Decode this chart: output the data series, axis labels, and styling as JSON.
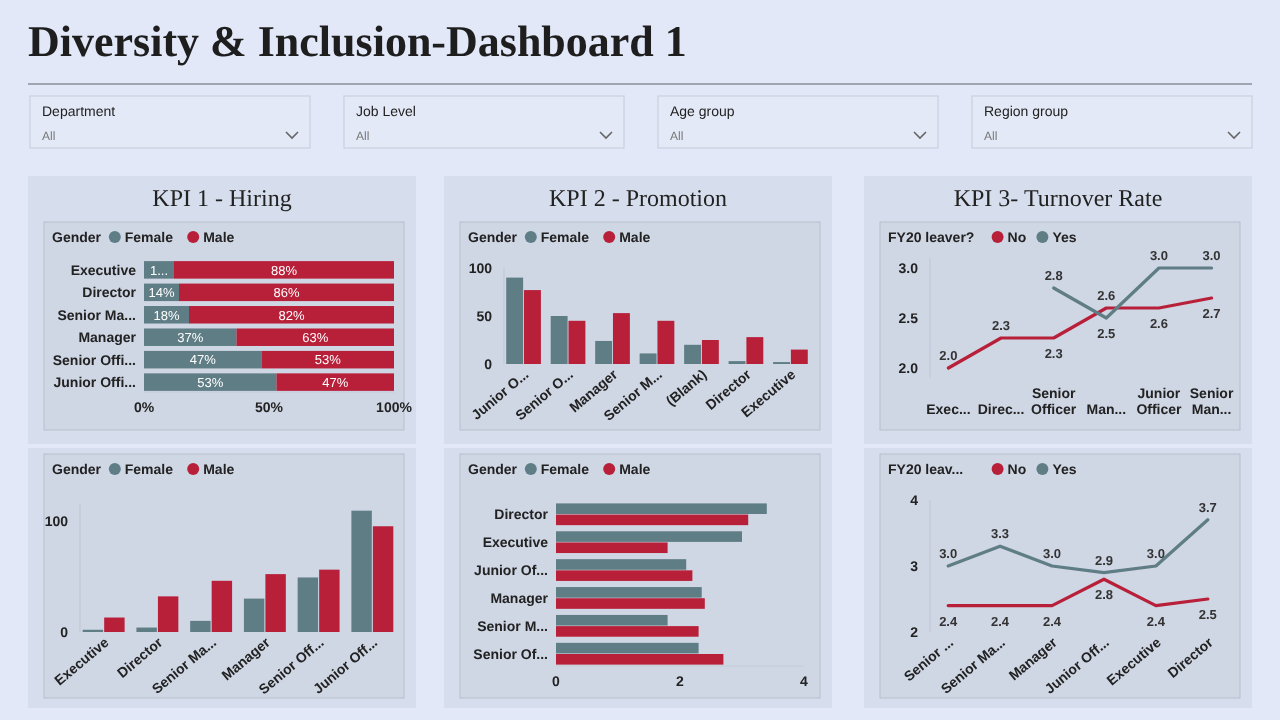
{
  "chart_data": [
    {
      "type": "other",
      "title": "Diversity & Inclusion-Dashboard 1",
      "annotations": [
        "Department",
        "All",
        "Job Level",
        "All",
        "Age group",
        "All",
        "Region group",
        "All"
      ]
    },
    {
      "type": "bar",
      "title": "KPI 1 - Hiring",
      "orientation": "horizontal",
      "stacked": true,
      "legend_title": "Gender",
      "legend": "top left",
      "categories": [
        "Executive",
        "Director",
        "Senior Ma...",
        "Manager",
        "Senior Offi...",
        "Junior Offi..."
      ],
      "xlim": [
        0,
        100
      ],
      "xticks": [
        {
          "value": 0,
          "label": "0%"
        },
        {
          "value": 50,
          "label": "50%"
        },
        {
          "value": 100,
          "label": "100%"
        }
      ],
      "series": [
        {
          "name": "Female",
          "color": "#5f7d85",
          "values": [
            12,
            14,
            18,
            37,
            47,
            53
          ],
          "value_labels": [
            "1...",
            "14%",
            "18%",
            "37%",
            "47%",
            "53%"
          ]
        },
        {
          "name": "Male",
          "color": "#b8203a",
          "values": [
            88,
            86,
            82,
            63,
            53,
            47
          ],
          "value_labels": [
            "88%",
            "86%",
            "82%",
            "63%",
            "53%",
            "47%"
          ]
        }
      ]
    },
    {
      "type": "bar",
      "title": "KPI 2 - Promotion",
      "legend_title": "Gender",
      "legend": "top left",
      "categories": [
        "Junior O...",
        "Senior O...",
        "Manager",
        "Senior M...",
        "(Blank)",
        "Director",
        "Executive"
      ],
      "ylim": [
        0,
        100
      ],
      "yticks": [
        0,
        50,
        100
      ],
      "series": [
        {
          "name": "Female",
          "color": "#5f7d85",
          "values": [
            90,
            50,
            24,
            11,
            20,
            3,
            2
          ]
        },
        {
          "name": "Male",
          "color": "#b8203a",
          "values": [
            77,
            45,
            53,
            45,
            25,
            28,
            15
          ]
        }
      ]
    },
    {
      "type": "line",
      "title": "KPI 3- Turnover Rate",
      "legend_title": "FY20 leaver?",
      "legend": "top left",
      "categories": [
        "Exec...",
        "Direc...",
        "Senior Officer",
        "Man...",
        "Junior Officer",
        "Senior Man..."
      ],
      "ylim": [
        1.9,
        3.1
      ],
      "yticks": [
        {
          "value": 2,
          "label": "2.0"
        },
        {
          "value": 2.5,
          "label": "2.5"
        },
        {
          "value": 3,
          "label": "3.0"
        }
      ],
      "series": [
        {
          "name": "No",
          "color": "#b8203a",
          "values": [
            2.0,
            2.3,
            2.3,
            2.6,
            2.6,
            2.7
          ],
          "value_labels": [
            "2.0",
            "2.3",
            "2.3",
            "2.6",
            "2.6",
            "2.7"
          ]
        },
        {
          "name": "Yes",
          "color": "#5f7d85",
          "values": [
            null,
            null,
            2.8,
            2.5,
            3.0,
            3.0
          ],
          "value_labels": [
            null,
            null,
            "2.8",
            "2.5",
            "3.0",
            "3.0"
          ]
        }
      ]
    },
    {
      "type": "bar",
      "legend_title": "Gender",
      "legend": "top left",
      "categories": [
        "Executive",
        "Director",
        "Senior Ma...",
        "Manager",
        "Senior Off...",
        "Junior Off..."
      ],
      "ylim": [
        0,
        115
      ],
      "yticks": [
        0,
        100
      ],
      "series": [
        {
          "name": "Female",
          "color": "#5f7d85",
          "values": [
            2,
            4,
            10,
            30,
            49,
            109
          ]
        },
        {
          "name": "Male",
          "color": "#b8203a",
          "values": [
            13,
            32,
            46,
            52,
            56,
            95
          ]
        }
      ]
    },
    {
      "type": "bar",
      "orientation": "horizontal",
      "legend_title": "Gender",
      "legend": "top left",
      "categories": [
        "Director",
        "Executive",
        "Junior Of...",
        "Manager",
        "Senior M...",
        "Senior Of..."
      ],
      "xlim": [
        0,
        4
      ],
      "xticks": [
        0,
        2,
        4
      ],
      "series": [
        {
          "name": "Female",
          "color": "#5f7d85",
          "values": [
            3.4,
            3.0,
            2.1,
            2.35,
            1.8,
            2.3
          ]
        },
        {
          "name": "Male",
          "color": "#b8203a",
          "values": [
            3.1,
            1.8,
            2.2,
            2.4,
            2.3,
            2.7
          ]
        }
      ]
    },
    {
      "type": "line",
      "legend_title": "FY20 leav...",
      "legend": "top left",
      "categories": [
        "Senior ...",
        "Senior Ma...",
        "Manager",
        "Junior Off...",
        "Executive",
        "Director"
      ],
      "ylim": [
        2,
        4
      ],
      "yticks": [
        2,
        3,
        4
      ],
      "series": [
        {
          "name": "No",
          "color": "#b8203a",
          "values": [
            2.4,
            2.4,
            2.4,
            2.8,
            2.4,
            2.5
          ],
          "value_labels": [
            "2.4",
            "2.4",
            "2.4",
            "2.8",
            "2.4",
            "2.5"
          ]
        },
        {
          "name": "Yes",
          "color": "#5f7d85",
          "values": [
            3.0,
            3.3,
            3.0,
            2.9,
            3.0,
            3.7
          ],
          "value_labels": [
            "3.0",
            "3.3",
            "3.0",
            "2.9",
            "3.0",
            "3.7"
          ]
        }
      ]
    }
  ]
}
